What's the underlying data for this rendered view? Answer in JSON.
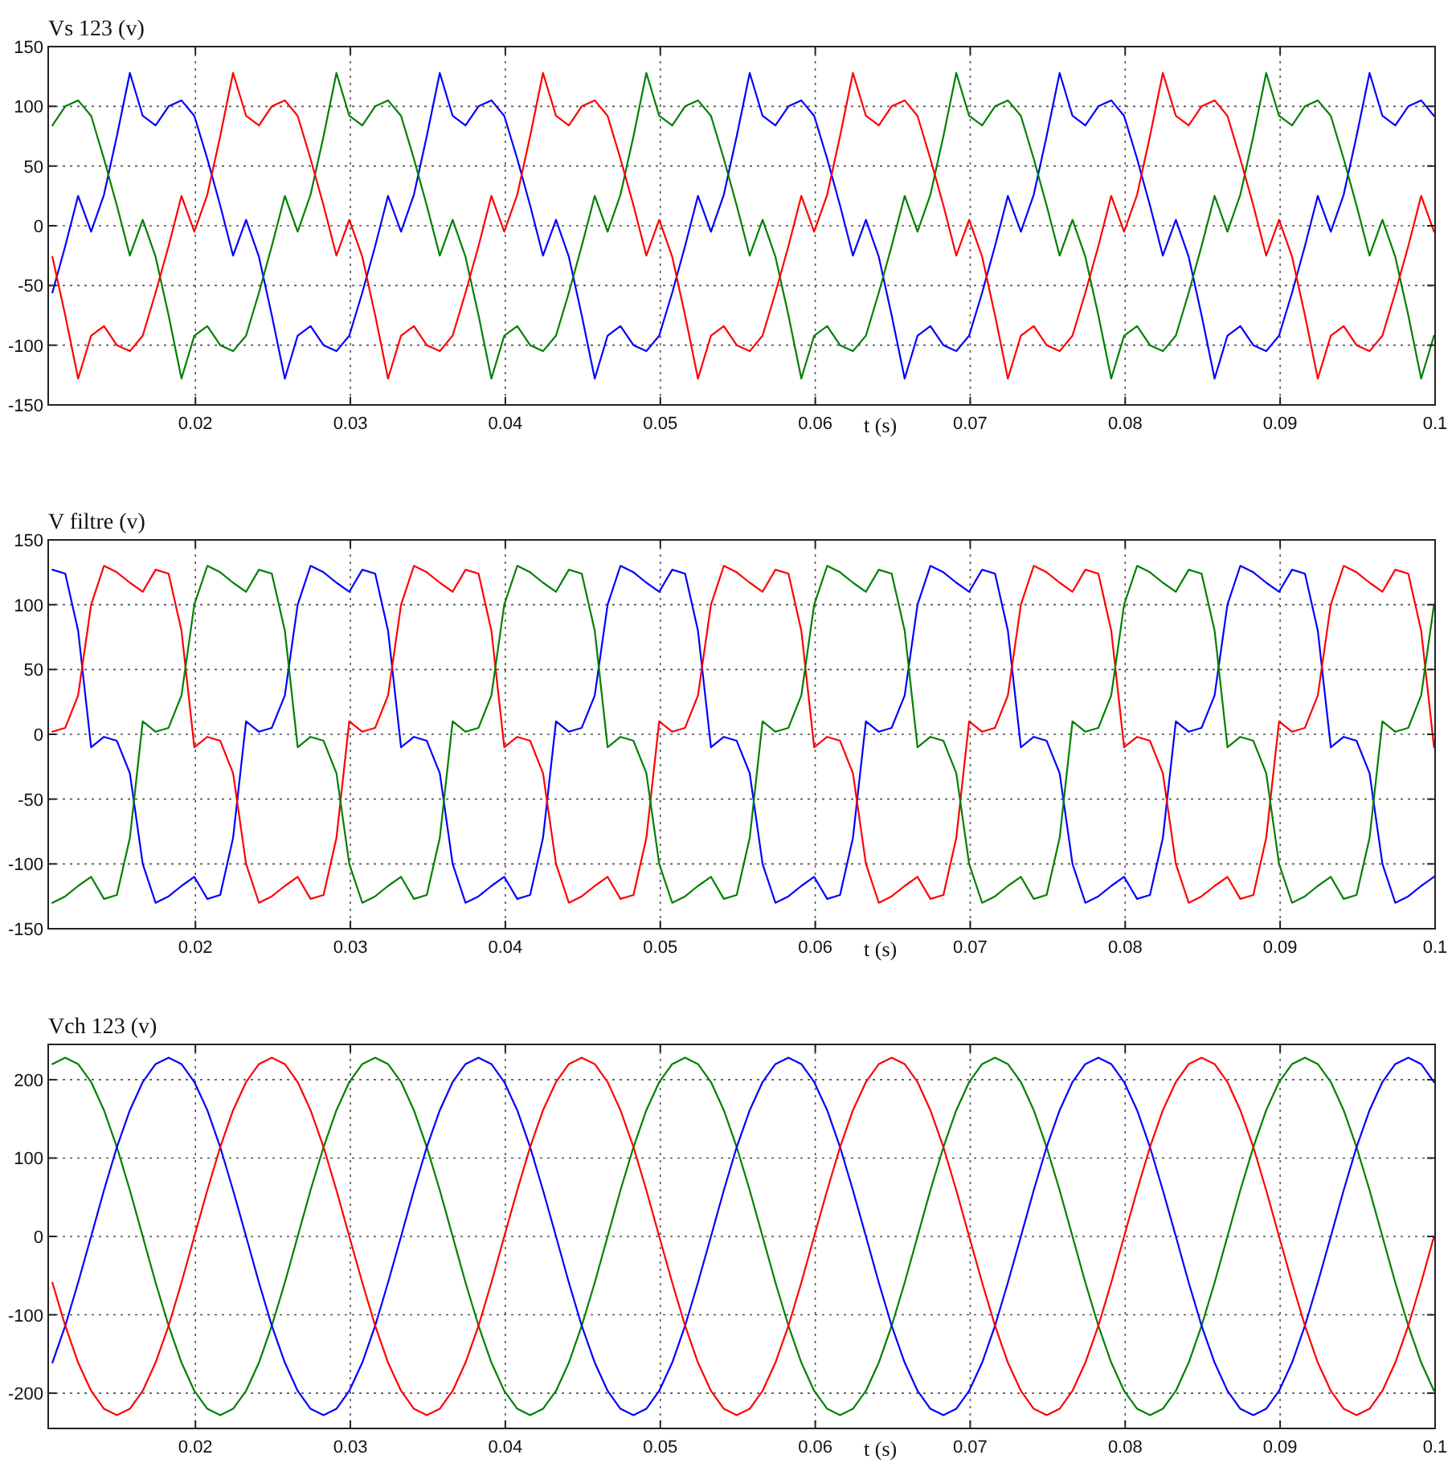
{
  "chart_data": [
    {
      "type": "line",
      "title": "Vs 123 (v)",
      "xlabel": "t (s)",
      "grid": true,
      "xlim": [
        0.0105,
        0.1
      ],
      "xticks": [
        0.02,
        0.03,
        0.04,
        0.05,
        0.06,
        0.07,
        0.08,
        0.09,
        0.1
      ],
      "ylim": [
        -150,
        150
      ],
      "yticks": [
        -150,
        -100,
        -50,
        0,
        50,
        100,
        150
      ],
      "x": [
        0.01077,
        0.0116,
        0.01243,
        0.01327,
        0.0141,
        0.01493,
        0.01577,
        0.0166,
        0.01743,
        0.01827,
        0.0191,
        0.01993,
        0.02077,
        0.0216,
        0.02243,
        0.02327,
        0.0241,
        0.02493,
        0.02577,
        0.0266,
        0.02743,
        0.02827,
        0.0291,
        0.02993,
        0.03077,
        0.0316,
        0.03243,
        0.03327,
        0.0341,
        0.03493,
        0.03577,
        0.0366,
        0.03743,
        0.03827,
        0.0391,
        0.03993,
        0.04077,
        0.0416,
        0.04243,
        0.04327,
        0.0441,
        0.04493,
        0.04577,
        0.0466,
        0.04743,
        0.04827,
        0.0491,
        0.04993,
        0.05077,
        0.0516,
        0.05243,
        0.05327,
        0.0541,
        0.05493,
        0.05577,
        0.0566,
        0.05743,
        0.05827,
        0.0591,
        0.05993,
        0.06077,
        0.0616,
        0.06243,
        0.06327,
        0.0641,
        0.06493,
        0.06577,
        0.0666,
        0.06743,
        0.06827,
        0.0691,
        0.06993,
        0.07077,
        0.0716,
        0.07243,
        0.07327,
        0.0741,
        0.07493,
        0.07577,
        0.0766,
        0.07743,
        0.07827,
        0.0791,
        0.07993,
        0.08077,
        0.0816,
        0.08243,
        0.08327,
        0.0841,
        0.08493,
        0.08577,
        0.0866,
        0.08743,
        0.08827,
        0.0891,
        0.08993,
        0.09077,
        0.0916,
        0.09243,
        0.09327,
        0.0941,
        0.09493,
        0.09577,
        0.0966,
        0.09743,
        0.09827,
        0.0991,
        0.09993
      ],
      "series": [
        {
          "color": "#0000ff",
          "values": [
            -56,
            -17,
            25,
            -5,
            26,
            75,
            128,
            92,
            84,
            100,
            105,
            92,
            56,
            17,
            -25,
            5,
            -26,
            -75,
            -128,
            -92,
            -84,
            -100,
            -105,
            -92,
            -56,
            -17,
            25,
            -5,
            26,
            75,
            128,
            92,
            84,
            100,
            105,
            92,
            56,
            17,
            -25,
            5,
            -26,
            -75,
            -128,
            -92,
            -84,
            -100,
            -105,
            -92,
            -56,
            -17,
            25,
            -5,
            26,
            75,
            128,
            92,
            84,
            100,
            105,
            92,
            56,
            17,
            -25,
            5,
            -26,
            -75,
            -128,
            -92,
            -84,
            -100,
            -105,
            -92,
            -56,
            -17,
            25,
            -5,
            26,
            75,
            128,
            92,
            84,
            100,
            105,
            92,
            56,
            17,
            -25,
            5,
            -26,
            -75,
            -128,
            -92,
            -84,
            -100,
            -105,
            -92,
            -56,
            -17,
            25,
            -5,
            26,
            75,
            128,
            92,
            84,
            100,
            105,
            92
          ]
        },
        {
          "color": "#008000",
          "values": [
            84,
            100,
            105,
            92,
            56,
            17,
            -25,
            5,
            -26,
            -75,
            -128,
            -92,
            -84,
            -100,
            -105,
            -92,
            -56,
            -17,
            25,
            -5,
            26,
            75,
            128,
            92,
            84,
            100,
            105,
            92,
            56,
            17,
            -25,
            5,
            -26,
            -75,
            -128,
            -92,
            -84,
            -100,
            -105,
            -92,
            -56,
            -17,
            25,
            -5,
            26,
            75,
            128,
            92,
            84,
            100,
            105,
            92,
            56,
            17,
            -25,
            5,
            -26,
            -75,
            -128,
            -92,
            -84,
            -100,
            -105,
            -92,
            -56,
            -17,
            25,
            -5,
            26,
            75,
            128,
            92,
            84,
            100,
            105,
            92,
            56,
            17,
            -25,
            5,
            -26,
            -75,
            -128,
            -92,
            -84,
            -100,
            -105,
            -92,
            -56,
            -17,
            25,
            -5,
            26,
            75,
            128,
            92,
            84,
            100,
            105,
            92,
            56,
            17,
            -25,
            5,
            -26,
            -75,
            -128,
            -92
          ]
        },
        {
          "color": "#ff0000",
          "values": [
            -26,
            -75,
            -128,
            -92,
            -84,
            -100,
            -105,
            -92,
            -56,
            -17,
            25,
            -5,
            26,
            75,
            128,
            92,
            84,
            100,
            105,
            92,
            56,
            17,
            -25,
            5,
            -26,
            -75,
            -128,
            -92,
            -84,
            -100,
            -105,
            -92,
            -56,
            -17,
            25,
            -5,
            26,
            75,
            128,
            92,
            84,
            100,
            105,
            92,
            56,
            17,
            -25,
            5,
            -26,
            -75,
            -128,
            -92,
            -84,
            -100,
            -105,
            -92,
            -56,
            -17,
            25,
            -5,
            26,
            75,
            128,
            92,
            84,
            100,
            105,
            92,
            56,
            17,
            -25,
            5,
            -26,
            -75,
            -128,
            -92,
            -84,
            -100,
            -105,
            -92,
            -56,
            -17,
            25,
            -5,
            26,
            75,
            128,
            92,
            84,
            100,
            105,
            92,
            56,
            17,
            -25,
            5,
            -26,
            -75,
            -128,
            -92,
            -84,
            -100,
            -105,
            -92,
            -56,
            -17,
            25,
            -5
          ]
        }
      ]
    },
    {
      "type": "line",
      "title": "V filtre (v)",
      "xlabel": "t (s)",
      "grid": true,
      "xlim": [
        0.0105,
        0.1
      ],
      "xticks": [
        0.02,
        0.03,
        0.04,
        0.05,
        0.06,
        0.07,
        0.08,
        0.09,
        0.1
      ],
      "ylim": [
        -150,
        150
      ],
      "yticks": [
        -150,
        -100,
        -50,
        0,
        50,
        100,
        150
      ],
      "x": [
        0.01077,
        0.0116,
        0.01243,
        0.01327,
        0.0141,
        0.01493,
        0.01577,
        0.0166,
        0.01743,
        0.01827,
        0.0191,
        0.01993,
        0.02077,
        0.0216,
        0.02243,
        0.02327,
        0.0241,
        0.02493,
        0.02577,
        0.0266,
        0.02743,
        0.02827,
        0.0291,
        0.02993,
        0.03077,
        0.0316,
        0.03243,
        0.03327,
        0.0341,
        0.03493,
        0.03577,
        0.0366,
        0.03743,
        0.03827,
        0.0391,
        0.03993,
        0.04077,
        0.0416,
        0.04243,
        0.04327,
        0.0441,
        0.04493,
        0.04577,
        0.0466,
        0.04743,
        0.04827,
        0.0491,
        0.04993,
        0.05077,
        0.0516,
        0.05243,
        0.05327,
        0.0541,
        0.05493,
        0.05577,
        0.0566,
        0.05743,
        0.05827,
        0.0591,
        0.05993,
        0.06077,
        0.0616,
        0.06243,
        0.06327,
        0.0641,
        0.06493,
        0.06577,
        0.0666,
        0.06743,
        0.06827,
        0.0691,
        0.06993,
        0.07077,
        0.0716,
        0.07243,
        0.07327,
        0.0741,
        0.07493,
        0.07577,
        0.0766,
        0.07743,
        0.07827,
        0.0791,
        0.07993,
        0.08077,
        0.0816,
        0.08243,
        0.08327,
        0.0841,
        0.08493,
        0.08577,
        0.0866,
        0.08743,
        0.08827,
        0.0891,
        0.08993,
        0.09077,
        0.0916,
        0.09243,
        0.09327,
        0.0941,
        0.09493,
        0.09577,
        0.0966,
        0.09743,
        0.09827,
        0.0991,
        0.09993
      ],
      "series": [
        {
          "color": "#0000ff",
          "values": [
            127,
            124,
            80,
            -10,
            -2,
            -5,
            -30,
            -100,
            -130,
            -125,
            -117,
            -110,
            -127,
            -124,
            -80,
            10,
            2,
            5,
            30,
            100,
            130,
            125,
            117,
            110,
            127,
            124,
            80,
            -10,
            -2,
            -5,
            -30,
            -100,
            -130,
            -125,
            -117,
            -110,
            -127,
            -124,
            -80,
            10,
            2,
            5,
            30,
            100,
            130,
            125,
            117,
            110,
            127,
            124,
            80,
            -10,
            -2,
            -5,
            -30,
            -100,
            -130,
            -125,
            -117,
            -110,
            -127,
            -124,
            -80,
            10,
            2,
            5,
            30,
            100,
            130,
            125,
            117,
            110,
            127,
            124,
            80,
            -10,
            -2,
            -5,
            -30,
            -100,
            -130,
            -125,
            -117,
            -110,
            -127,
            -124,
            -80,
            10,
            2,
            5,
            30,
            100,
            130,
            125,
            117,
            110,
            127,
            124,
            80,
            -10,
            -2,
            -5,
            -30,
            -100,
            -130,
            -125,
            -117,
            -110
          ]
        },
        {
          "color": "#ff0000",
          "values": [
            2,
            5,
            30,
            100,
            130,
            125,
            117,
            110,
            127,
            124,
            80,
            -10,
            -2,
            -5,
            -30,
            -100,
            -130,
            -125,
            -117,
            -110,
            -127,
            -124,
            -80,
            10,
            2,
            5,
            30,
            100,
            130,
            125,
            117,
            110,
            127,
            124,
            80,
            -10,
            -2,
            -5,
            -30,
            -100,
            -130,
            -125,
            -117,
            -110,
            -127,
            -124,
            -80,
            10,
            2,
            5,
            30,
            100,
            130,
            125,
            117,
            110,
            127,
            124,
            80,
            -10,
            -2,
            -5,
            -30,
            -100,
            -130,
            -125,
            -117,
            -110,
            -127,
            -124,
            -80,
            10,
            2,
            5,
            30,
            100,
            130,
            125,
            117,
            110,
            127,
            124,
            80,
            -10,
            -2,
            -5,
            -30,
            -100,
            -130,
            -125,
            -117,
            -110,
            -127,
            -124,
            -80,
            10,
            2,
            5,
            30,
            100,
            130,
            125,
            117,
            110,
            127,
            124,
            80,
            -10
          ]
        },
        {
          "color": "#008000",
          "values": [
            -130,
            -125,
            -117,
            -110,
            -127,
            -124,
            -80,
            10,
            2,
            5,
            30,
            100,
            130,
            125,
            117,
            110,
            127,
            124,
            80,
            -10,
            -2,
            -5,
            -30,
            -100,
            -130,
            -125,
            -117,
            -110,
            -127,
            -124,
            -80,
            10,
            2,
            5,
            30,
            100,
            130,
            125,
            117,
            110,
            127,
            124,
            80,
            -10,
            -2,
            -5,
            -30,
            -100,
            -130,
            -125,
            -117,
            -110,
            -127,
            -124,
            -80,
            10,
            2,
            5,
            30,
            100,
            130,
            125,
            117,
            110,
            127,
            124,
            80,
            -10,
            -2,
            -5,
            -30,
            -100,
            -130,
            -125,
            -117,
            -110,
            -127,
            -124,
            -80,
            10,
            2,
            5,
            30,
            100,
            130,
            125,
            117,
            110,
            127,
            124,
            80,
            -10,
            -2,
            -5,
            -30,
            -100,
            -130,
            -125,
            -117,
            -110,
            -127,
            -124,
            -80,
            10,
            2,
            5,
            30,
            100
          ]
        }
      ]
    },
    {
      "type": "line",
      "title": "Vch 123 (v)",
      "xlabel": "t (s)",
      "grid": true,
      "xlim": [
        0.0105,
        0.1
      ],
      "xticks": [
        0.02,
        0.03,
        0.04,
        0.05,
        0.06,
        0.07,
        0.08,
        0.09,
        0.1
      ],
      "ylim": [
        -245,
        245
      ],
      "yticks": [
        -200,
        -100,
        0,
        100,
        200
      ],
      "x": [
        0.01077,
        0.0116,
        0.01243,
        0.01327,
        0.0141,
        0.01493,
        0.01577,
        0.0166,
        0.01743,
        0.01827,
        0.0191,
        0.01993,
        0.02077,
        0.0216,
        0.02243,
        0.02327,
        0.0241,
        0.02493,
        0.02577,
        0.0266,
        0.02743,
        0.02827,
        0.0291,
        0.02993,
        0.03077,
        0.0316,
        0.03243,
        0.03327,
        0.0341,
        0.03493,
        0.03577,
        0.0366,
        0.03743,
        0.03827,
        0.0391,
        0.03993,
        0.04077,
        0.0416,
        0.04243,
        0.04327,
        0.0441,
        0.04493,
        0.04577,
        0.0466,
        0.04743,
        0.04827,
        0.0491,
        0.04993,
        0.05077,
        0.0516,
        0.05243,
        0.05327,
        0.0541,
        0.05493,
        0.05577,
        0.0566,
        0.05743,
        0.05827,
        0.0591,
        0.05993,
        0.06077,
        0.0616,
        0.06243,
        0.06327,
        0.0641,
        0.06493,
        0.06577,
        0.0666,
        0.06743,
        0.06827,
        0.0691,
        0.06993,
        0.07077,
        0.0716,
        0.07243,
        0.07327,
        0.0741,
        0.07493,
        0.07577,
        0.0766,
        0.07743,
        0.07827,
        0.0791,
        0.07993,
        0.08077,
        0.0816,
        0.08243,
        0.08327,
        0.0841,
        0.08493,
        0.08577,
        0.0866,
        0.08743,
        0.08827,
        0.0891,
        0.08993,
        0.09077,
        0.0916,
        0.09243,
        0.09327,
        0.0941,
        0.09493,
        0.09577,
        0.0966,
        0.09743,
        0.09827,
        0.0991,
        0.09993
      ],
      "series": [
        {
          "color": "#008000",
          "values": [
            220,
            228,
            220,
            197,
            161,
            114,
            59,
            0,
            -59,
            -114,
            -161,
            -197,
            -220,
            -228,
            -220,
            -197,
            -161,
            -114,
            -59,
            0,
            59,
            114,
            161,
            197,
            220,
            228,
            220,
            197,
            161,
            114,
            59,
            0,
            -59,
            -114,
            -161,
            -197,
            -220,
            -228,
            -220,
            -197,
            -161,
            -114,
            -59,
            0,
            59,
            114,
            161,
            197,
            220,
            228,
            220,
            197,
            161,
            114,
            59,
            0,
            -59,
            -114,
            -161,
            -197,
            -220,
            -228,
            -220,
            -197,
            -161,
            -114,
            -59,
            0,
            59,
            114,
            161,
            197,
            220,
            228,
            220,
            197,
            161,
            114,
            59,
            0,
            -59,
            -114,
            -161,
            -197,
            -220,
            -228,
            -220,
            -197,
            -161,
            -114,
            -59,
            0,
            59,
            114,
            161,
            197,
            220,
            228,
            220,
            197,
            161,
            114,
            59,
            0,
            -59,
            -114,
            -161,
            -197
          ]
        },
        {
          "color": "#0000ff",
          "values": [
            -161,
            -114,
            -59,
            0,
            59,
            114,
            161,
            197,
            220,
            228,
            220,
            197,
            161,
            114,
            59,
            0,
            -59,
            -114,
            -161,
            -197,
            -220,
            -228,
            -220,
            -197,
            -161,
            -114,
            -59,
            0,
            59,
            114,
            161,
            197,
            220,
            228,
            220,
            197,
            161,
            114,
            59,
            0,
            -59,
            -114,
            -161,
            -197,
            -220,
            -228,
            -220,
            -197,
            -161,
            -114,
            -59,
            0,
            59,
            114,
            161,
            197,
            220,
            228,
            220,
            197,
            161,
            114,
            59,
            0,
            -59,
            -114,
            -161,
            -197,
            -220,
            -228,
            -220,
            -197,
            -161,
            -114,
            -59,
            0,
            59,
            114,
            161,
            197,
            220,
            228,
            220,
            197,
            161,
            114,
            59,
            0,
            -59,
            -114,
            -161,
            -197,
            -220,
            -228,
            -220,
            -197,
            -161,
            -114,
            -59,
            0,
            59,
            114,
            161,
            197,
            220,
            228,
            220,
            197
          ]
        },
        {
          "color": "#ff0000",
          "values": [
            -59,
            -114,
            -161,
            -197,
            -220,
            -228,
            -220,
            -197,
            -161,
            -114,
            -59,
            0,
            59,
            114,
            161,
            197,
            220,
            228,
            220,
            197,
            161,
            114,
            59,
            0,
            -59,
            -114,
            -161,
            -197,
            -220,
            -228,
            -220,
            -197,
            -161,
            -114,
            -59,
            0,
            59,
            114,
            161,
            197,
            220,
            228,
            220,
            197,
            161,
            114,
            59,
            0,
            -59,
            -114,
            -161,
            -197,
            -220,
            -228,
            -220,
            -197,
            -161,
            -114,
            -59,
            0,
            59,
            114,
            161,
            197,
            220,
            228,
            220,
            197,
            161,
            114,
            59,
            0,
            -59,
            -114,
            -161,
            -197,
            -220,
            -228,
            -220,
            -197,
            -161,
            -114,
            -59,
            0,
            59,
            114,
            161,
            197,
            220,
            228,
            220,
            197,
            161,
            114,
            59,
            0,
            -59,
            -114,
            -161,
            -197,
            -220,
            -228,
            -220,
            -197,
            -161,
            -114,
            -59,
            0
          ]
        }
      ]
    }
  ]
}
